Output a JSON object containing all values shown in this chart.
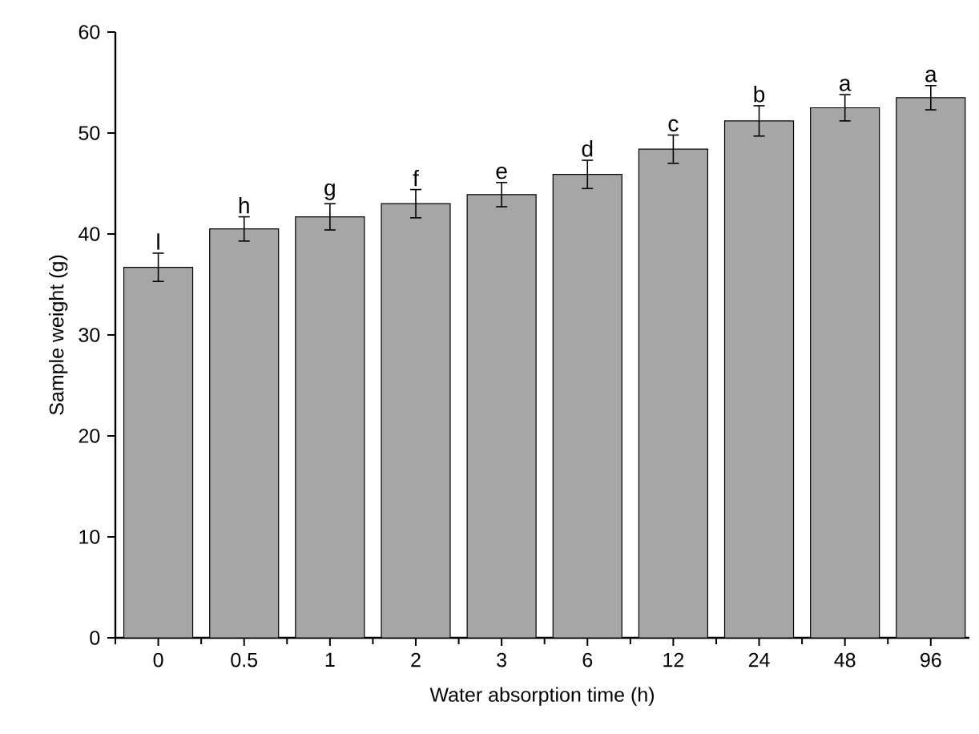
{
  "chart_data": {
    "type": "bar",
    "xlabel": "Water absorption time (h)",
    "ylabel": "Sample weight (g)",
    "categories": [
      "0",
      "0.5",
      "1",
      "2",
      "3",
      "6",
      "12",
      "24",
      "48",
      "96"
    ],
    "values": [
      36.7,
      40.5,
      41.7,
      43.0,
      43.9,
      45.9,
      48.4,
      51.2,
      52.5,
      53.5
    ],
    "errors": [
      1.4,
      1.2,
      1.3,
      1.4,
      1.2,
      1.4,
      1.4,
      1.5,
      1.3,
      1.2
    ],
    "color": "#a6a6a6",
    "ylim": [
      0,
      60
    ],
    "yticks": [
      0,
      10,
      20,
      30,
      40,
      50,
      60
    ],
    "annotations": [
      {
        "text": "l",
        "x": "0",
        "y": 36.7
      },
      {
        "text": "h",
        "x": "0.5",
        "y": 40.5
      },
      {
        "text": "g",
        "x": "1",
        "y": 41.7
      },
      {
        "text": "f",
        "x": "2",
        "y": 43.0
      },
      {
        "text": "e",
        "x": "3",
        "y": 43.9
      },
      {
        "text": "d",
        "x": "6",
        "y": 45.9
      },
      {
        "text": "c",
        "x": "12",
        "y": 48.4
      },
      {
        "text": "b",
        "x": "24",
        "y": 51.2
      },
      {
        "text": "a",
        "x": "48",
        "y": 52.5
      },
      {
        "text": "a",
        "x": "96",
        "y": 53.5
      }
    ]
  }
}
